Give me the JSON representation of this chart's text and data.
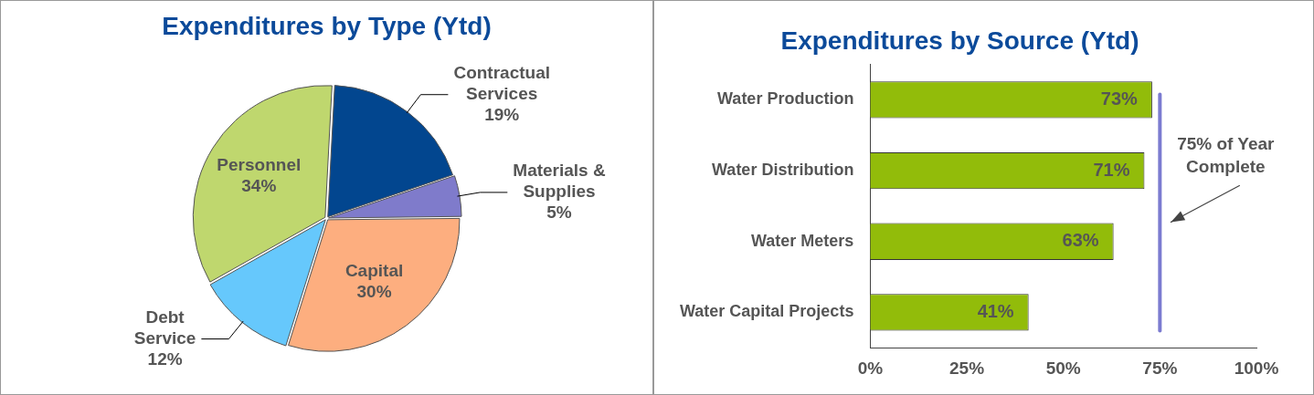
{
  "chart_data": [
    {
      "type": "pie",
      "title": "Expenditures by Type (Ytd)",
      "categories": [
        "Contractual Services",
        "Materials & Supplies",
        "Capital",
        "Debt Service",
        "Personnel"
      ],
      "values": [
        19,
        5,
        30,
        12,
        34
      ],
      "colors": [
        "#02468f",
        "#7f7bcb",
        "#fdae7f",
        "#66c8fc",
        "#bfd76e"
      ],
      "value_labels": [
        "19%",
        "5%",
        "30%",
        "12%",
        "34%"
      ],
      "legend": false
    },
    {
      "type": "bar",
      "orientation": "horizontal",
      "title": "Expenditures by Source (Ytd)",
      "categories": [
        "Water Production",
        "Water Distribution",
        "Water Meters",
        "Water Capital Projects"
      ],
      "values": [
        73,
        71,
        63,
        41
      ],
      "color": "#92bc0a",
      "value_labels": [
        "73%",
        "71%",
        "63%",
        "41%"
      ],
      "xlim": [
        0,
        100
      ],
      "xticks": [
        {
          "value": 0,
          "label": "0%"
        },
        {
          "value": 25,
          "label": "25%"
        },
        {
          "value": 50,
          "label": "50%"
        },
        {
          "value": 75,
          "label": "75%"
        },
        {
          "value": 100,
          "label": "100%"
        }
      ],
      "grid": false,
      "legend": false,
      "ref_lines": [
        {
          "axis": "x",
          "value": 75,
          "label": "75% of Year Complete",
          "color": "#7b7bd0"
        }
      ]
    }
  ]
}
